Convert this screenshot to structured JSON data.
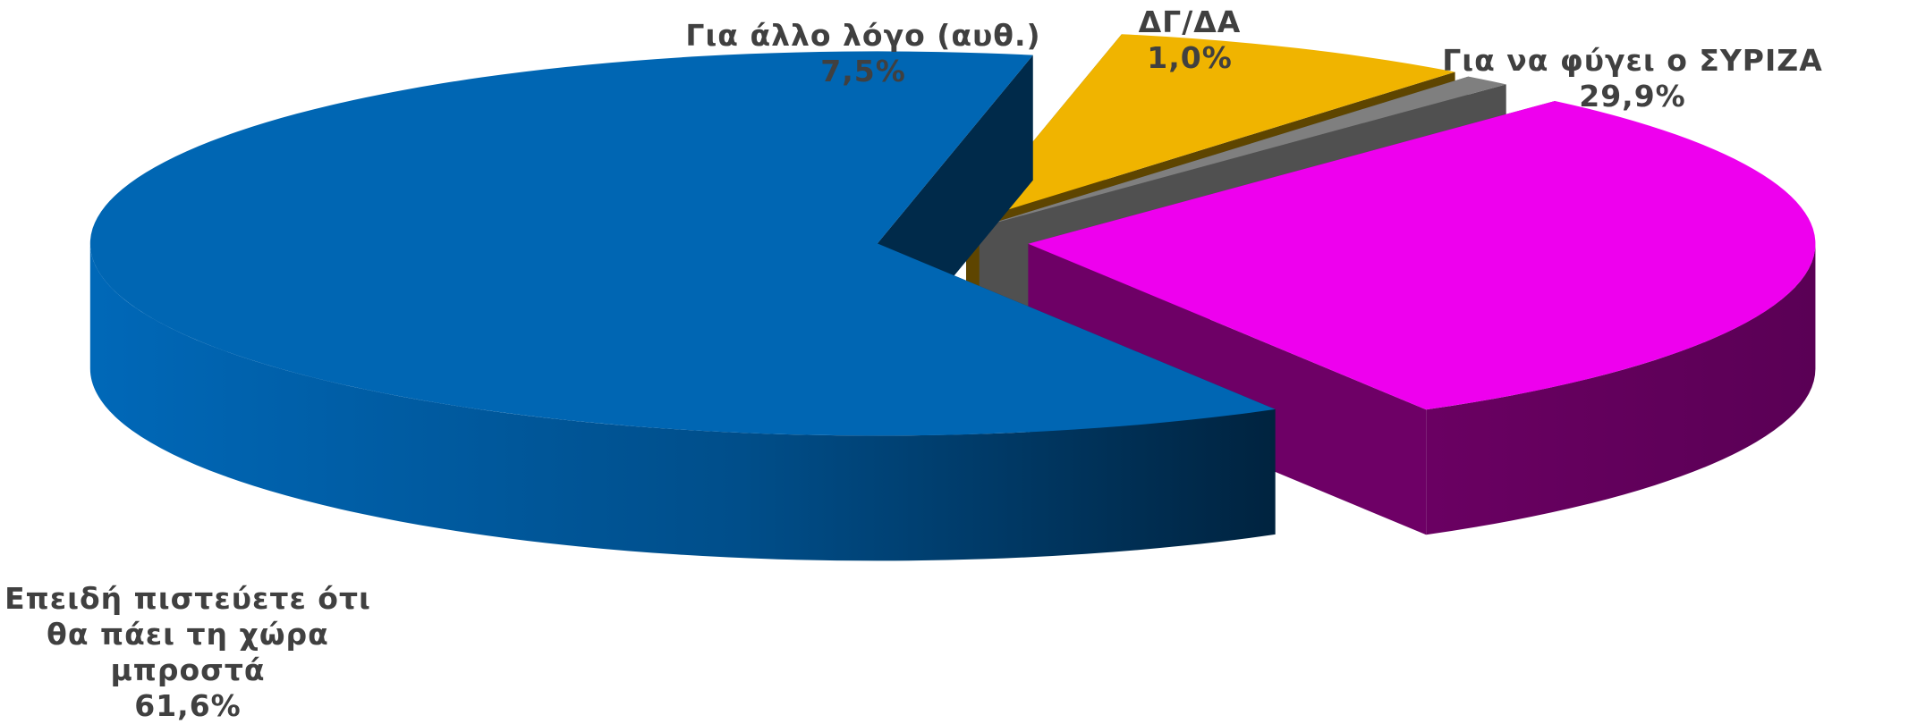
{
  "chart_data": {
    "type": "pie",
    "title": "",
    "variant": "3d-exploded",
    "series": [
      {
        "name": "",
        "slices": [
          {
            "label_lines": [
              "Για να φύγει ο ΣΥΡΙΖΑ"
            ],
            "value": 29.9,
            "value_text": "29,9%",
            "color": "#EE00EE",
            "side_color": "#6E0066"
          },
          {
            "label_lines": [
              "Επειδή πιστεύετε ότι",
              "θα πάει τη χώρα",
              "μπροστά"
            ],
            "value": 61.6,
            "value_text": "61,6%",
            "color": "#0066B3",
            "side_color": "#002A4A"
          },
          {
            "label_lines": [
              "Για άλλο λόγο (αυθ.)"
            ],
            "value": 7.5,
            "value_text": "7,5%",
            "color": "#F0B400",
            "side_color": "#5E4500"
          },
          {
            "label_lines": [
              "ΔΓ/ΔΑ"
            ],
            "value": 1.0,
            "value_text": "1,0%",
            "color": "#7F7F7F",
            "side_color": "#505050"
          }
        ]
      }
    ],
    "legend": "none",
    "data_labels": "outside"
  }
}
